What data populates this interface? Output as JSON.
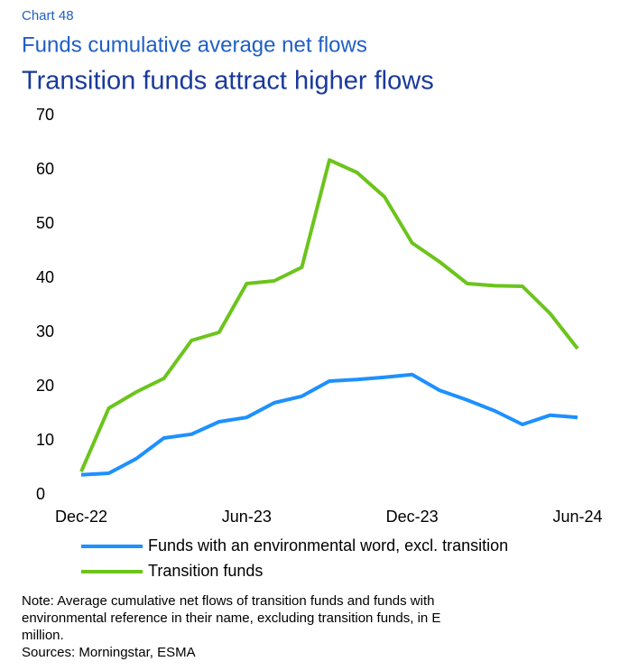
{
  "chart_data": {
    "type": "line",
    "label": "Chart 48",
    "title": "Funds cumulative average net flows",
    "subtitle": "Transition funds attract higher flows",
    "categories": [
      "Dec-22",
      null,
      null,
      null,
      null,
      null,
      "Jun-23",
      null,
      null,
      null,
      null,
      null,
      "Dec-23",
      null,
      null,
      null,
      null,
      null,
      "Jun-24"
    ],
    "series": [
      {
        "name": "Funds with an environmental word, excl. transition",
        "color": "#1e90ff",
        "values": [
          3.7,
          4,
          6.7,
          10.5,
          11.2,
          13.5,
          14.3,
          17,
          18.2,
          21,
          21.3,
          21.7,
          22.2,
          19.3,
          17.5,
          15.5,
          13,
          14.7,
          14.3
        ]
      },
      {
        "name": "Transition funds",
        "color": "#6cc41c",
        "values": [
          4.3,
          16,
          19,
          21.5,
          28.5,
          30,
          39,
          39.5,
          42,
          61.8,
          59.5,
          55,
          46.5,
          43,
          39,
          38.6,
          38.5,
          33.5,
          27
        ]
      }
    ],
    "ylim": [
      0,
      70
    ],
    "yticks": [
      0,
      10,
      20,
      30,
      40,
      50,
      60,
      70
    ],
    "grid": false,
    "note": [
      "Note: Average cumulative net flows of transition funds and funds with",
      "environmental reference in their name, excluding transition funds, in E",
      "million."
    ],
    "sources": "Sources: Morningstar, ESMA"
  }
}
